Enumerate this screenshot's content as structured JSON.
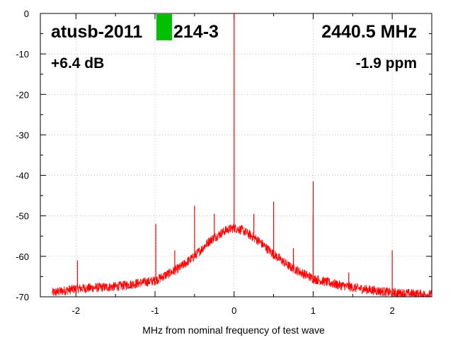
{
  "chart_data": {
    "type": "line",
    "xlabel": "MHz from nominal frequency of test wave",
    "ylabel": "",
    "xlim": [
      -2.45,
      2.5
    ],
    "ylim": [
      -70,
      0
    ],
    "x_ticks": [
      -2,
      -1,
      0,
      1,
      2
    ],
    "y_ticks": [
      0,
      -10,
      -20,
      -30,
      -40,
      -50,
      -60,
      -70
    ],
    "grid": true,
    "series_color": "#ff0000",
    "status_color": "#00c000",
    "annotations": {
      "device": "atusb-2011",
      "device_suffix": "214-3",
      "frequency": "2440.5 MHz",
      "gain": "+6.4 dB",
      "offset": "-1.9 ppm"
    },
    "noise_floor": {
      "x": [
        -2.3,
        -2.0,
        -1.5,
        -1.0,
        -0.7,
        -0.5,
        -0.3,
        -0.1,
        0.0,
        0.1,
        0.3,
        0.5,
        0.7,
        1.0,
        1.3,
        1.6,
        2.0,
        2.5
      ],
      "y": [
        -69,
        -68,
        -67.5,
        -66,
        -63,
        -60,
        -56,
        -53.5,
        -53,
        -53.5,
        -56,
        -59.5,
        -62.5,
        -65.5,
        -67,
        -68,
        -69,
        -69.5
      ]
    },
    "spurs": {
      "x": [
        -1.98,
        -0.99,
        -0.75,
        -0.5,
        -0.25,
        0.0,
        0.25,
        0.5,
        0.75,
        1.0,
        1.0,
        1.25,
        1.45,
        2.0
      ],
      "y": [
        -61,
        -52,
        -58.5,
        -47.5,
        -49.5,
        0,
        -49.5,
        -46.5,
        -58,
        -41.5,
        -50,
        -66,
        -64,
        -58.5
      ]
    }
  }
}
